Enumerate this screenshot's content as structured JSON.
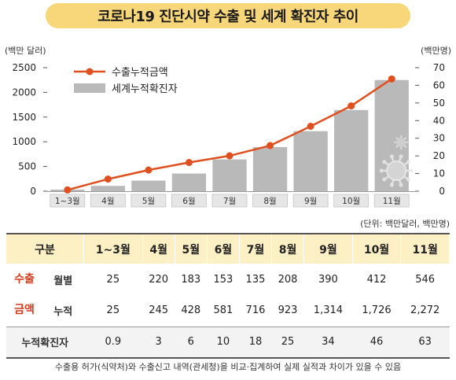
{
  "title": "코로나19 진단시약 수출 및 세계 확진자 추이",
  "chart_data": {
    "type": "bar+line",
    "categories": [
      "1~3월",
      "4월",
      "5월",
      "6월",
      "7월",
      "8월",
      "9월",
      "10월",
      "11월"
    ],
    "series": [
      {
        "name": "수출누적금액",
        "type": "line",
        "axis": "left",
        "color": "#e0501f",
        "values": [
          25,
          245,
          428,
          581,
          716,
          923,
          1314,
          1726,
          2272
        ]
      },
      {
        "name": "세계누적확진자",
        "type": "bar",
        "axis": "right",
        "color": "#b9b9b9",
        "values": [
          0.9,
          3,
          6,
          10,
          18,
          25,
          34,
          46,
          63
        ]
      }
    ],
    "y_left": {
      "label": "(백만 달러)",
      "min": 0,
      "max": 2500,
      "ticks": [
        0,
        500,
        1000,
        1500,
        2000,
        2500
      ]
    },
    "y_right": {
      "label": "(백만명)",
      "min": 0,
      "max": 70,
      "ticks": [
        0,
        10,
        20,
        30,
        40,
        50,
        60,
        70
      ]
    },
    "grid": false,
    "legend_position": "top-left"
  },
  "unit_note": "(단위: 백만달러, 백만명)",
  "table": {
    "header_label": "구분",
    "columns": [
      "1~3월",
      "4월",
      "5월",
      "6월",
      "7월",
      "8월",
      "9월",
      "10월",
      "11월"
    ],
    "group_label_line1": "수출",
    "group_label_line2": "금액",
    "monthly_label": "월별",
    "monthly": [
      "25",
      "220",
      "183",
      "153",
      "135",
      "208",
      "390",
      "412",
      "546"
    ],
    "cumulative_label": "누적",
    "cumulative": [
      "25",
      "245",
      "428",
      "581",
      "716",
      "923",
      "1,314",
      "1,726",
      "2,272"
    ],
    "cases_label": "누적확진자",
    "cases": [
      "0.9",
      "3",
      "6",
      "10",
      "18",
      "25",
      "34",
      "46",
      "63"
    ]
  },
  "footnote": "수출용 허가(식약처)와 수출신고 내역(관세청)을 비교·집계하여 실제 실적과 차이가 있을 수 있음"
}
